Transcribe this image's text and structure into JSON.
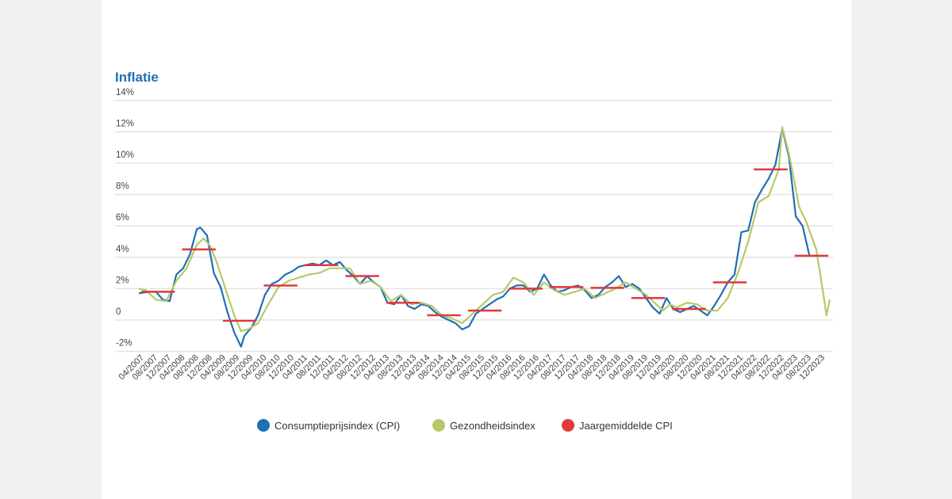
{
  "chart_data": {
    "type": "line",
    "title": "Inflatie",
    "ylim": [
      -2,
      14
    ],
    "yticks": [
      -2,
      0,
      2,
      4,
      6,
      8,
      10,
      12,
      14
    ],
    "ytick_labels": [
      "-2%",
      "0",
      "2%",
      "4%",
      "6%",
      "8%",
      "10%",
      "12%",
      "14%"
    ],
    "xrange": [
      "2007-01",
      "2023-12"
    ],
    "xtick_labels": [
      "04/2007",
      "08/2007",
      "12/2007",
      "04/2008",
      "08/2008",
      "12/2008",
      "04/2009",
      "08/2009",
      "12/2009",
      "04/2010",
      "08/2010",
      "12/2010",
      "04/2011",
      "08/2011",
      "12/2011",
      "04/2012",
      "08/2012",
      "12/2012",
      "04/2013",
      "08/2013",
      "12/2013",
      "04/2014",
      "08/2014",
      "12/2014",
      "04/2015",
      "08/2015",
      "12/2015",
      "04/2016",
      "08/2016",
      "12/2016",
      "04/2017",
      "08/2017",
      "12/2017",
      "04/2018",
      "08/2018",
      "12/2018",
      "04/2019",
      "08/2019",
      "12/2019",
      "04/2020",
      "08/2020",
      "12/2020",
      "04/2021",
      "08/2021",
      "12/2021",
      "04/2022",
      "08/2022",
      "12/2022",
      "04/2023",
      "08/2023",
      "12/2023"
    ],
    "grid": true,
    "legend_placement": "bottom",
    "series": [
      {
        "name": "Consumptieprijsindex (CPI)",
        "color": "#1f6fb5",
        "points": [
          [
            "2007-01",
            1.7
          ],
          [
            "2007-04",
            1.8
          ],
          [
            "2007-06",
            1.8
          ],
          [
            "2007-08",
            1.3
          ],
          [
            "2007-10",
            1.2
          ],
          [
            "2007-12",
            2.9
          ],
          [
            "2008-02",
            3.3
          ],
          [
            "2008-04",
            4.2
          ],
          [
            "2008-06",
            5.8
          ],
          [
            "2008-07",
            5.9
          ],
          [
            "2008-09",
            5.4
          ],
          [
            "2008-11",
            3.0
          ],
          [
            "2009-01",
            2.1
          ],
          [
            "2009-03",
            0.5
          ],
          [
            "2009-05",
            -0.8
          ],
          [
            "2009-07",
            -1.7
          ],
          [
            "2009-08",
            -1.0
          ],
          [
            "2009-10",
            -0.5
          ],
          [
            "2009-12",
            0.3
          ],
          [
            "2010-02",
            1.6
          ],
          [
            "2010-04",
            2.3
          ],
          [
            "2010-06",
            2.5
          ],
          [
            "2010-08",
            2.9
          ],
          [
            "2010-10",
            3.1
          ],
          [
            "2010-12",
            3.4
          ],
          [
            "2011-02",
            3.5
          ],
          [
            "2011-04",
            3.6
          ],
          [
            "2011-06",
            3.5
          ],
          [
            "2011-08",
            3.8
          ],
          [
            "2011-10",
            3.5
          ],
          [
            "2011-12",
            3.7
          ],
          [
            "2012-02",
            3.2
          ],
          [
            "2012-04",
            2.8
          ],
          [
            "2012-06",
            2.3
          ],
          [
            "2012-08",
            2.8
          ],
          [
            "2012-10",
            2.4
          ],
          [
            "2012-12",
            2.1
          ],
          [
            "2013-02",
            1.1
          ],
          [
            "2013-04",
            1.0
          ],
          [
            "2013-06",
            1.6
          ],
          [
            "2013-08",
            0.9
          ],
          [
            "2013-10",
            0.7
          ],
          [
            "2013-12",
            1.0
          ],
          [
            "2014-02",
            0.9
          ],
          [
            "2014-04",
            0.5
          ],
          [
            "2014-06",
            0.2
          ],
          [
            "2014-08",
            0.0
          ],
          [
            "2014-10",
            -0.2
          ],
          [
            "2014-12",
            -0.6
          ],
          [
            "2015-02",
            -0.4
          ],
          [
            "2015-04",
            0.4
          ],
          [
            "2015-06",
            0.7
          ],
          [
            "2015-08",
            1.0
          ],
          [
            "2015-10",
            1.3
          ],
          [
            "2015-12",
            1.5
          ],
          [
            "2016-02",
            2.0
          ],
          [
            "2016-04",
            2.2
          ],
          [
            "2016-06",
            2.2
          ],
          [
            "2016-08",
            1.8
          ],
          [
            "2016-10",
            2.0
          ],
          [
            "2016-12",
            2.9
          ],
          [
            "2017-02",
            2.2
          ],
          [
            "2017-04",
            1.8
          ],
          [
            "2017-06",
            1.9
          ],
          [
            "2017-08",
            2.1
          ],
          [
            "2017-10",
            2.2
          ],
          [
            "2017-12",
            1.9
          ],
          [
            "2018-02",
            1.4
          ],
          [
            "2018-04",
            1.6
          ],
          [
            "2018-06",
            2.1
          ],
          [
            "2018-08",
            2.4
          ],
          [
            "2018-10",
            2.8
          ],
          [
            "2018-12",
            2.1
          ],
          [
            "2019-02",
            2.3
          ],
          [
            "2019-04",
            2.0
          ],
          [
            "2019-06",
            1.4
          ],
          [
            "2019-08",
            0.8
          ],
          [
            "2019-10",
            0.4
          ],
          [
            "2019-12",
            1.4
          ],
          [
            "2020-02",
            0.7
          ],
          [
            "2020-04",
            0.5
          ],
          [
            "2020-06",
            0.7
          ],
          [
            "2020-08",
            0.9
          ],
          [
            "2020-10",
            0.6
          ],
          [
            "2020-12",
            0.3
          ],
          [
            "2021-02",
            0.9
          ],
          [
            "2021-04",
            1.6
          ],
          [
            "2021-06",
            2.4
          ],
          [
            "2021-08",
            2.9
          ],
          [
            "2021-10",
            5.6
          ],
          [
            "2021-12",
            5.7
          ],
          [
            "2022-02",
            7.5
          ],
          [
            "2022-04",
            8.3
          ],
          [
            "2022-06",
            9.0
          ],
          [
            "2022-08",
            9.9
          ],
          [
            "2022-10",
            12.2
          ],
          [
            "2022-12",
            10.4
          ],
          [
            "2023-02",
            6.6
          ],
          [
            "2023-04",
            6.0
          ],
          [
            "2023-06",
            4.1
          ]
        ]
      },
      {
        "name": "Gezondheidsindex",
        "color": "#b5c96a",
        "points": [
          [
            "2007-01",
            2.0
          ],
          [
            "2007-03",
            1.9
          ],
          [
            "2007-06",
            1.3
          ],
          [
            "2007-09",
            1.2
          ],
          [
            "2007-12",
            2.5
          ],
          [
            "2008-03",
            3.3
          ],
          [
            "2008-06",
            4.8
          ],
          [
            "2008-08",
            5.2
          ],
          [
            "2008-10",
            4.7
          ],
          [
            "2008-12",
            3.6
          ],
          [
            "2009-03",
            1.6
          ],
          [
            "2009-05",
            0.3
          ],
          [
            "2009-07",
            -0.7
          ],
          [
            "2009-09",
            -0.6
          ],
          [
            "2009-12",
            -0.2
          ],
          [
            "2010-03",
            1.0
          ],
          [
            "2010-06",
            2.1
          ],
          [
            "2010-09",
            2.5
          ],
          [
            "2010-12",
            2.7
          ],
          [
            "2011-03",
            2.9
          ],
          [
            "2011-06",
            3.0
          ],
          [
            "2011-09",
            3.3
          ],
          [
            "2011-12",
            3.3
          ],
          [
            "2012-03",
            3.3
          ],
          [
            "2012-06",
            2.3
          ],
          [
            "2012-09",
            2.5
          ],
          [
            "2012-12",
            2.1
          ],
          [
            "2013-03",
            1.2
          ],
          [
            "2013-06",
            1.6
          ],
          [
            "2013-09",
            1.0
          ],
          [
            "2013-12",
            1.1
          ],
          [
            "2014-03",
            0.9
          ],
          [
            "2014-06",
            0.3
          ],
          [
            "2014-09",
            0.1
          ],
          [
            "2014-12",
            -0.2
          ],
          [
            "2015-03",
            0.4
          ],
          [
            "2015-06",
            1.0
          ],
          [
            "2015-09",
            1.6
          ],
          [
            "2015-12",
            1.8
          ],
          [
            "2016-03",
            2.7
          ],
          [
            "2016-06",
            2.4
          ],
          [
            "2016-09",
            1.6
          ],
          [
            "2016-12",
            2.4
          ],
          [
            "2017-03",
            1.9
          ],
          [
            "2017-06",
            1.6
          ],
          [
            "2017-09",
            1.8
          ],
          [
            "2017-12",
            2.0
          ],
          [
            "2018-03",
            1.4
          ],
          [
            "2018-06",
            1.7
          ],
          [
            "2018-09",
            2.0
          ],
          [
            "2018-12",
            2.4
          ],
          [
            "2019-03",
            2.0
          ],
          [
            "2019-06",
            1.6
          ],
          [
            "2019-09",
            1.0
          ],
          [
            "2019-11",
            0.6
          ],
          [
            "2020-01",
            1.0
          ],
          [
            "2020-03",
            0.8
          ],
          [
            "2020-06",
            1.1
          ],
          [
            "2020-09",
            1.0
          ],
          [
            "2020-12",
            0.6
          ],
          [
            "2021-03",
            0.6
          ],
          [
            "2021-06",
            1.4
          ],
          [
            "2021-09",
            3.0
          ],
          [
            "2021-12",
            5.0
          ],
          [
            "2022-03",
            7.5
          ],
          [
            "2022-06",
            7.9
          ],
          [
            "2022-09",
            9.6
          ],
          [
            "2022-10",
            12.3
          ],
          [
            "2022-12",
            10.6
          ],
          [
            "2023-03",
            7.2
          ],
          [
            "2023-05",
            6.3
          ],
          [
            "2023-08",
            4.5
          ],
          [
            "2023-10",
            1.8
          ],
          [
            "2023-11",
            0.3
          ],
          [
            "2023-12",
            1.3
          ]
        ]
      },
      {
        "name": "Jaargemiddelde CPI",
        "color": "#e03a3a",
        "type": "annual-bars",
        "values": [
          [
            2007,
            1.8
          ],
          [
            2008,
            4.5
          ],
          [
            2009,
            -0.05
          ],
          [
            2010,
            2.2
          ],
          [
            2011,
            3.5
          ],
          [
            2012,
            2.8
          ],
          [
            2013,
            1.1
          ],
          [
            2014,
            0.3
          ],
          [
            2015,
            0.6
          ],
          [
            2016,
            2.0
          ],
          [
            2017,
            2.1
          ],
          [
            2018,
            2.05
          ],
          [
            2019,
            1.4
          ],
          [
            2020,
            0.7
          ],
          [
            2021,
            2.4
          ],
          [
            2022,
            9.6
          ],
          [
            2023,
            4.1
          ]
        ]
      }
    ]
  }
}
